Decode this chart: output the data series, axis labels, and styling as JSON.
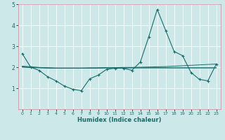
{
  "xlabel": "Humidex (Indice chaleur)",
  "xlim": [
    -0.5,
    23.5
  ],
  "ylim": [
    0,
    5
  ],
  "xticks": [
    0,
    1,
    2,
    3,
    4,
    5,
    6,
    7,
    8,
    9,
    10,
    11,
    12,
    13,
    14,
    15,
    16,
    17,
    18,
    19,
    20,
    21,
    22,
    23
  ],
  "yticks": [
    1,
    2,
    3,
    4,
    5
  ],
  "bg_color": "#cce8e8",
  "line_color": "#1a6b6b",
  "grid_color": "#ffffff",
  "line1_x": [
    0,
    1,
    2,
    3,
    4,
    5,
    6,
    7,
    8,
    9,
    10,
    11,
    12,
    13,
    14,
    15,
    16,
    17,
    18,
    19,
    20,
    21,
    22,
    23
  ],
  "line1_y": [
    2.65,
    2.0,
    1.85,
    1.55,
    1.35,
    1.1,
    0.95,
    0.88,
    1.45,
    1.62,
    1.9,
    1.95,
    1.95,
    1.85,
    2.25,
    3.45,
    4.75,
    3.75,
    2.75,
    2.55,
    1.75,
    1.42,
    1.35,
    2.15
  ],
  "line2_x": [
    0,
    1,
    2,
    3,
    4,
    5,
    6,
    7,
    8,
    9,
    10,
    11,
    12,
    13,
    14,
    15,
    16,
    17,
    18,
    19,
    20,
    21,
    22,
    23
  ],
  "line2_y": [
    2.05,
    2.02,
    1.99,
    1.97,
    1.96,
    1.96,
    1.96,
    1.96,
    1.97,
    1.97,
    1.98,
    1.98,
    1.99,
    1.99,
    2.0,
    2.01,
    2.02,
    2.03,
    2.05,
    2.07,
    2.09,
    2.11,
    2.13,
    2.15
  ],
  "line3_x": [
    0,
    1,
    2,
    3,
    4,
    5,
    6,
    7,
    8,
    9,
    10,
    11,
    12,
    13,
    14,
    15,
    16,
    17,
    18,
    19,
    20,
    21,
    22,
    23
  ],
  "line3_y": [
    2.0,
    1.98,
    1.97,
    1.96,
    1.95,
    1.95,
    1.95,
    1.95,
    1.95,
    1.96,
    1.97,
    1.97,
    1.97,
    1.97,
    1.97,
    1.97,
    1.97,
    1.97,
    1.97,
    1.97,
    1.97,
    1.97,
    1.97,
    1.97
  ],
  "line4_x": [
    0,
    1,
    2,
    3,
    4,
    5,
    6,
    7,
    8,
    9,
    10,
    11,
    12,
    13,
    14,
    15,
    16,
    17,
    18,
    19,
    20,
    21,
    22,
    23
  ],
  "line4_y": [
    2.02,
    2.0,
    1.98,
    1.97,
    1.96,
    1.96,
    1.96,
    1.96,
    1.96,
    1.96,
    1.97,
    1.97,
    1.97,
    1.97,
    1.97,
    1.97,
    1.97,
    1.97,
    1.97,
    1.97,
    1.97,
    1.97,
    1.97,
    1.97
  ]
}
